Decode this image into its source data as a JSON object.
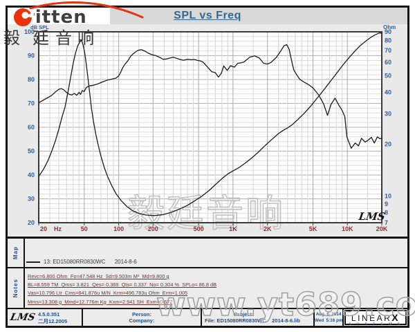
{
  "brand": {
    "logo_text": "ritten",
    "cjk_header": "毅廷音响"
  },
  "title": "SPL vs Freq",
  "watermarks": {
    "chart_cjk": "毅廷音响",
    "site": "www.yt689.com",
    "lms_script": "LMS"
  },
  "accent_colors": {
    "title_blue": "#33688e",
    "axis_blue": "#2d5f9b",
    "freq_red": "#8e2e2e",
    "notes_maroon": "#6f3434",
    "logo_red": "#e8320c"
  },
  "chart_data": {
    "type": "line",
    "title": "SPL vs Freq",
    "x_axis": {
      "label": "Hz",
      "scale": "log",
      "min": 20,
      "max": 20000,
      "tick_values": [
        20,
        50,
        100,
        200,
        500,
        1000,
        2000,
        5000,
        10000,
        20000
      ],
      "tick_labels": [
        "20",
        "50",
        "100",
        "200",
        "500",
        "1K",
        "2K",
        "5K",
        "10K",
        "20K"
      ]
    },
    "y_left": {
      "label": "dB SPL",
      "scale": "linear",
      "min": 20,
      "max": 100,
      "ticks": [
        20,
        30,
        40,
        50,
        60,
        70,
        80,
        90,
        100
      ]
    },
    "y_right": {
      "label": "Ohm",
      "scale": "log",
      "min": 7,
      "max": 90,
      "ticks": [
        7,
        8,
        9,
        10,
        20,
        30,
        40,
        50,
        60,
        70,
        80,
        90
      ]
    },
    "series": [
      {
        "name": "SPL",
        "axis": "left",
        "points": [
          [
            20,
            70.3
          ],
          [
            22,
            71.4
          ],
          [
            24,
            72.4
          ],
          [
            26,
            73.4
          ],
          [
            28,
            74.8
          ],
          [
            30,
            75.9
          ],
          [
            31.5,
            76.2
          ],
          [
            33,
            75.7
          ],
          [
            35,
            74.6
          ],
          [
            37,
            73.8
          ],
          [
            39,
            73.5
          ],
          [
            41,
            74.2
          ],
          [
            43,
            73.4
          ],
          [
            45,
            74.6
          ],
          [
            46.5,
            73.8
          ],
          [
            48,
            75.4
          ],
          [
            50,
            75.0
          ],
          [
            52,
            76.6
          ],
          [
            55,
            77.3
          ],
          [
            60,
            77.6
          ],
          [
            66,
            78.2
          ],
          [
            72,
            79.0
          ],
          [
            80,
            79.8
          ],
          [
            88,
            80.2
          ],
          [
            95,
            80.6
          ],
          [
            100,
            81.5
          ],
          [
            104,
            83.0
          ],
          [
            108,
            84.8
          ],
          [
            113,
            86.3
          ],
          [
            120,
            87.8
          ],
          [
            128,
            89.9
          ],
          [
            137,
            91.2
          ],
          [
            148,
            92.3
          ],
          [
            158,
            92.5
          ],
          [
            170,
            91.9
          ],
          [
            182,
            91.0
          ],
          [
            196,
            90.4
          ],
          [
            212,
            90.0
          ],
          [
            228,
            89.3
          ],
          [
            245,
            88.5
          ],
          [
            262,
            88.6
          ],
          [
            280,
            89.0
          ],
          [
            300,
            89.4
          ],
          [
            320,
            88.9
          ],
          [
            345,
            88.4
          ],
          [
            370,
            88.1
          ],
          [
            400,
            88.5
          ],
          [
            430,
            88.3
          ],
          [
            460,
            88.4
          ],
          [
            490,
            88.0
          ],
          [
            520,
            87.8
          ],
          [
            550,
            87.2
          ],
          [
            580,
            85.9
          ],
          [
            610,
            84.8
          ],
          [
            650,
            83.3
          ],
          [
            700,
            82.9
          ],
          [
            745,
            81.0
          ],
          [
            790,
            82.6
          ],
          [
            830,
            85.7
          ],
          [
            890,
            83.8
          ],
          [
            950,
            85.8
          ],
          [
            1030,
            85.2
          ],
          [
            1100,
            86.8
          ],
          [
            1180,
            87.0
          ],
          [
            1250,
            87.4
          ],
          [
            1400,
            89.4
          ],
          [
            1550,
            89.9
          ],
          [
            1700,
            89.0
          ],
          [
            1850,
            86.8
          ],
          [
            2000,
            86.5
          ],
          [
            2150,
            87.2
          ],
          [
            2400,
            89.4
          ],
          [
            2600,
            91.8
          ],
          [
            2800,
            94.2
          ],
          [
            2950,
            94.6
          ],
          [
            3100,
            92.6
          ],
          [
            3250,
            88.0
          ],
          [
            3400,
            84.0
          ],
          [
            3600,
            82.0
          ],
          [
            3850,
            80.0
          ],
          [
            4200,
            78.9
          ],
          [
            4600,
            77.8
          ],
          [
            5000,
            76.5
          ],
          [
            5600,
            73.6
          ],
          [
            6200,
            69.8
          ],
          [
            6700,
            65.0
          ],
          [
            7200,
            69.6
          ],
          [
            7800,
            72.2
          ],
          [
            8300,
            69.8
          ],
          [
            9000,
            67.0
          ],
          [
            9500,
            64.5
          ],
          [
            9900,
            56.0
          ],
          [
            10800,
            51.2
          ],
          [
            11700,
            53.4
          ],
          [
            12500,
            52.2
          ],
          [
            13300,
            55.4
          ],
          [
            14300,
            53.8
          ],
          [
            15200,
            54.6
          ],
          [
            16200,
            55.8
          ],
          [
            17200,
            53.4
          ],
          [
            18300,
            56.0
          ],
          [
            19200,
            55.2
          ],
          [
            20000,
            55.4
          ]
        ]
      },
      {
        "name": "Impedance",
        "axis": "right",
        "points": [
          [
            20,
            13
          ],
          [
            22,
            14.3
          ],
          [
            24,
            16
          ],
          [
            26,
            18.2
          ],
          [
            28,
            21
          ],
          [
            30,
            24.5
          ],
          [
            32,
            28.8
          ],
          [
            34,
            33
          ],
          [
            36,
            40
          ],
          [
            38,
            49
          ],
          [
            40,
            59
          ],
          [
            42,
            68
          ],
          [
            44,
            75
          ],
          [
            46,
            79
          ],
          [
            47.5,
            80
          ],
          [
            49,
            75
          ],
          [
            50.5,
            68
          ],
          [
            52,
            59
          ],
          [
            54,
            48
          ],
          [
            56,
            39
          ],
          [
            58,
            32
          ],
          [
            60,
            27.5
          ],
          [
            63,
            23
          ],
          [
            66,
            20
          ],
          [
            70,
            17
          ],
          [
            75,
            14.6
          ],
          [
            80,
            13
          ],
          [
            87,
            11.5
          ],
          [
            95,
            10.3
          ],
          [
            105,
            9.4
          ],
          [
            118,
            8.7
          ],
          [
            133,
            8.2
          ],
          [
            152,
            7.9
          ],
          [
            175,
            7.75
          ],
          [
            205,
            7.7
          ],
          [
            245,
            7.8
          ],
          [
            290,
            8.05
          ],
          [
            340,
            8.4
          ],
          [
            395,
            8.8
          ],
          [
            460,
            9.35
          ],
          [
            535,
            10.0
          ],
          [
            620,
            10.8
          ],
          [
            715,
            11.8
          ],
          [
            820,
            12.8
          ],
          [
            910,
            13.5
          ],
          [
            1000,
            14.0
          ],
          [
            1120,
            14.6
          ],
          [
            1270,
            15.5
          ],
          [
            1450,
            16.6
          ],
          [
            1650,
            17.9
          ],
          [
            1900,
            19.6
          ],
          [
            2200,
            21.4
          ],
          [
            2500,
            23.1
          ],
          [
            2750,
            24.1
          ],
          [
            3000,
            24.9
          ],
          [
            3300,
            26.0
          ],
          [
            3700,
            27.9
          ],
          [
            4200,
            30.3
          ],
          [
            4700,
            32.9
          ],
          [
            5200,
            35.7
          ],
          [
            5800,
            39.0
          ],
          [
            6500,
            43.0
          ],
          [
            7300,
            47.5
          ],
          [
            8200,
            52.5
          ],
          [
            9200,
            58.0
          ],
          [
            10300,
            63.5
          ],
          [
            11500,
            69.0
          ],
          [
            13000,
            75.0
          ],
          [
            14500,
            79.5
          ],
          [
            16000,
            83.5
          ],
          [
            17500,
            86.5
          ],
          [
            19000,
            88.5
          ],
          [
            20000,
            88.5
          ]
        ]
      }
    ]
  },
  "map_row": {
    "label": "Map",
    "legend": "13: ED15080RR0830WC      2014-8-6"
  },
  "notes": {
    "label": "Notes",
    "lines": [
      "Revc=6.800 Ohm  Fo=47.548 Hz  Sd=9.503m M²  Md=9.800 g",
      "BL=8.559 TM  Qms= 3.821  Qes= 0.369  Qts= 0.337  No= 0.304 %  SPLo= 86.8 dB",
      "Vas=10.796 Ltr  Cms=841.876u M/N  Krm=496.783u Ohm  Erm=1.005",
      "Mms=13.308 g  Mmd=12.776m Kg  Kxm=2.941 SH  Exm=0.672"
    ]
  },
  "footer": {
    "lms_logo": "LMS",
    "version": "4.5.0.351",
    "version_date": "二月12.2005",
    "person_label": "Person:",
    "company_label": "Company:",
    "project_label": "Project:",
    "file_line": "File: ED15080RR0830WC    2014-8-6.lib",
    "date_line1": "Aug  6, 2014",
    "date_line2": "Wed  5:16 pm",
    "brand": "LINEAR",
    "brand_x": "X",
    "brand_sub": "S  Y  S  T  E  M  S"
  }
}
